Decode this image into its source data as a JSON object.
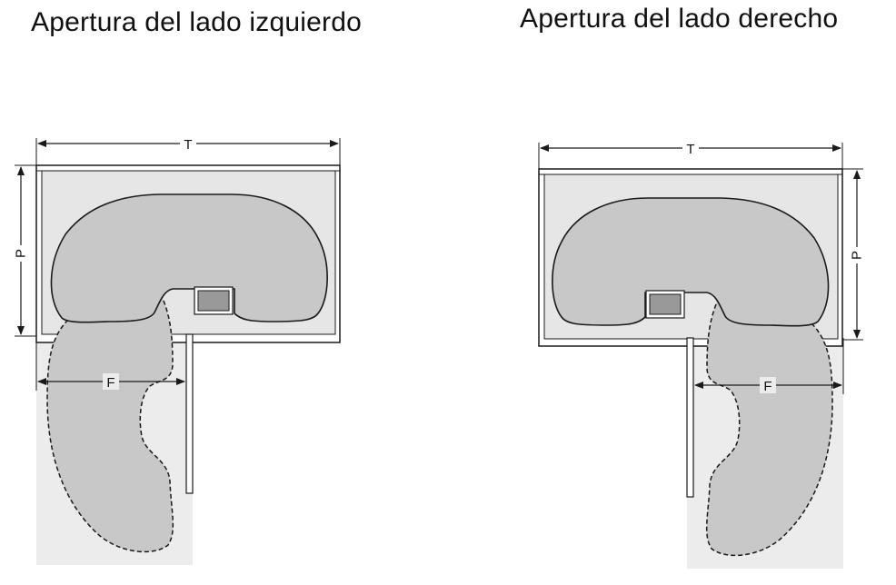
{
  "titles": {
    "left": "Apertura del lado izquierdo",
    "right": "Apertura del lado derecho"
  },
  "dimension_labels": {
    "width": "T",
    "depth": "P",
    "opening": "F"
  },
  "colors": {
    "cabinet_fill": "#e6e6e6",
    "tray_fill": "#c8c8c8",
    "extension_area": "#ececec",
    "post_fill": "#999999",
    "line": "#1a1a1a"
  }
}
